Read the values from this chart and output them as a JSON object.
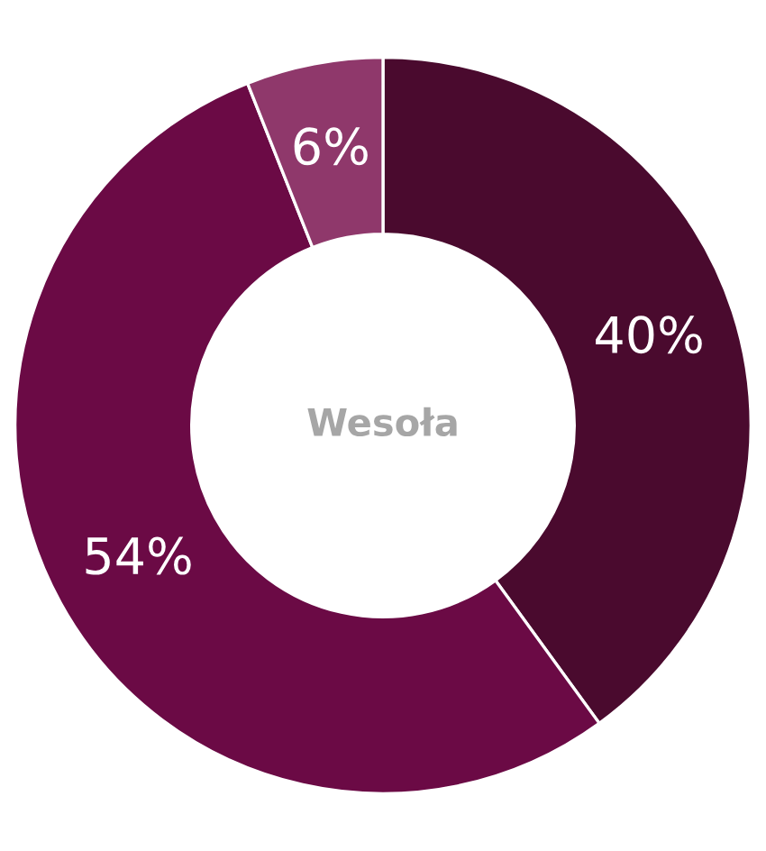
{
  "chart_data": {
    "type": "donut",
    "title": "Wesoła",
    "categories": [
      null,
      null,
      null
    ],
    "values": [
      40,
      54,
      6
    ],
    "colors": [
      "#4a0a2e",
      "#6b0a45",
      "#8f386b"
    ],
    "value_labels": [
      "40%",
      "54%",
      "6%"
    ]
  }
}
